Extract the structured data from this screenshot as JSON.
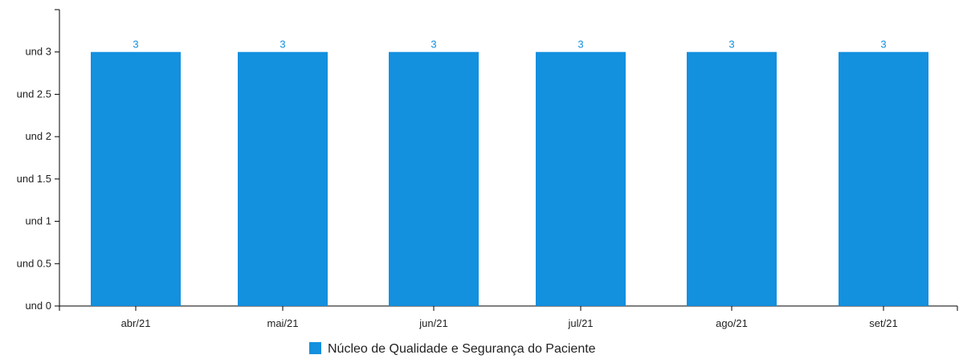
{
  "chart_data": {
    "type": "bar",
    "categories": [
      "abr/21",
      "mai/21",
      "jun/21",
      "jul/21",
      "ago/21",
      "set/21"
    ],
    "series": [
      {
        "name": "Núcleo de Qualidade e Segurança do Paciente",
        "values": [
          3,
          3,
          3,
          3,
          3,
          3
        ],
        "color": "#1390DE"
      }
    ],
    "data_labels": [
      "3",
      "3",
      "3",
      "3",
      "3",
      "3"
    ],
    "yticks": [
      0,
      0.5,
      1,
      1.5,
      2,
      2.5,
      3
    ],
    "ytick_labels": [
      "und 0",
      "und 0.5",
      "und 1",
      "und 1.5",
      "und 2",
      "und 2.5",
      "und 3"
    ],
    "ylim": [
      0,
      3.5
    ],
    "title": "",
    "xlabel": "",
    "ylabel": "",
    "grid": false,
    "legend_position": "bottom-center",
    "axis_color": "#000000",
    "label_color": "#1390DE"
  }
}
